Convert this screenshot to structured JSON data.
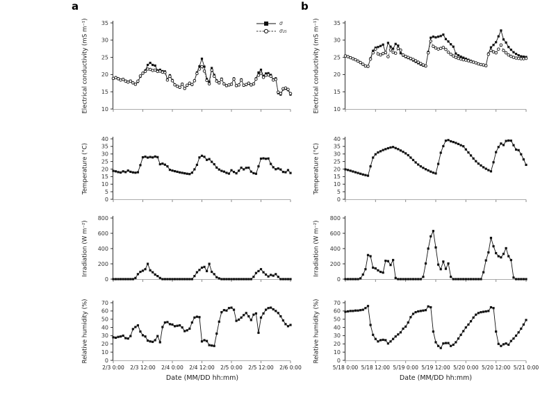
{
  "figure": {
    "background": "#ffffff",
    "panel_a": {
      "label": "a",
      "xlabel": "Date (MM/DD hh:mm)"
    },
    "panel_b": {
      "label": "b",
      "xlabel": "Date (MM/DD hh:mm)"
    }
  },
  "legend": {
    "items": [
      {
        "label": "σ",
        "marker": "filled-square",
        "line": "solid"
      },
      {
        "label": "σ₂₅",
        "marker": "open-circle",
        "line": "dashed"
      }
    ]
  },
  "colors": {
    "series": "#111111",
    "axis": "#2f2f2f",
    "baseline": "#ababab",
    "text": "#1a1a1a"
  },
  "chart_data": [
    {
      "type": "line",
      "panel": "a",
      "measure": "electrical-conductivity",
      "ylabel": "Electrical conductivity (mS m⁻¹)",
      "ylim": [
        10,
        35
      ],
      "yticks": [
        10,
        15,
        20,
        25,
        30,
        35
      ],
      "x_hours_range": [
        0,
        72
      ],
      "x_step_hours": 1,
      "xtick_hours": [
        0,
        12,
        24,
        36,
        48,
        60,
        72
      ],
      "xticklabels": null,
      "legend": true,
      "series": [
        {
          "name": "σ",
          "marker": "filled-square",
          "line": "solid",
          "values": [
            18.8,
            19.2,
            18.9,
            18.5,
            18.7,
            18.2,
            17.9,
            18.2,
            17.5,
            17.1,
            17.9,
            19.4,
            20.3,
            21.2,
            22.8,
            23.4,
            22.8,
            22.6,
            21.2,
            21.4,
            21.0,
            20.9,
            18.6,
            19.8,
            18.4,
            17.1,
            16.7,
            16.2,
            17.3,
            15.9,
            16.8,
            17.4,
            17.0,
            18.3,
            20.6,
            22.4,
            24.6,
            22.3,
            18.7,
            17.9,
            21.9,
            19.9,
            18.3,
            17.5,
            18.8,
            17.2,
            16.7,
            16.9,
            17.1,
            18.9,
            16.7,
            16.9,
            18.6,
            16.8,
            17.0,
            17.4,
            16.9,
            17.2,
            18.9,
            20.6,
            21.4,
            19.6,
            20.3,
            20.4,
            19.9,
            18.6,
            18.9,
            14.6,
            14.2,
            15.7,
            15.9,
            15.5,
            14.2
          ]
        },
        {
          "name": "σ₂₅",
          "marker": "open-circle",
          "line": "dashed",
          "values": [
            18.9,
            19.1,
            18.8,
            18.4,
            18.6,
            18.1,
            17.8,
            18.1,
            17.6,
            17.2,
            18.1,
            19.6,
            20.4,
            20.9,
            21.6,
            21.5,
            21.2,
            21.3,
            20.9,
            21.0,
            20.7,
            20.6,
            18.4,
            19.5,
            18.2,
            17.0,
            16.6,
            16.3,
            17.2,
            16.0,
            16.9,
            17.5,
            17.1,
            18.2,
            20.3,
            21.6,
            22.3,
            21.0,
            18.3,
            17.3,
            21.3,
            19.5,
            18.1,
            17.6,
            18.6,
            17.3,
            16.8,
            17.0,
            17.2,
            18.7,
            16.8,
            17.0,
            18.4,
            16.9,
            17.1,
            17.5,
            17.0,
            17.3,
            18.7,
            19.8,
            20.4,
            19.2,
            19.8,
            19.9,
            19.5,
            18.4,
            18.6,
            14.9,
            14.5,
            15.9,
            16.1,
            15.7,
            14.5
          ]
        }
      ]
    },
    {
      "type": "line",
      "panel": "a",
      "measure": "temperature",
      "ylabel": "Temperature (°C)",
      "ylim": [
        0,
        40
      ],
      "yticks": [
        0,
        5,
        10,
        15,
        20,
        25,
        30,
        35,
        40
      ],
      "x_hours_range": [
        0,
        72
      ],
      "x_step_hours": 1,
      "xtick_hours": [
        0,
        12,
        24,
        36,
        48,
        60,
        72
      ],
      "xticklabels": null,
      "legend": false,
      "series": [
        {
          "name": "temperature",
          "marker": "filled-square",
          "line": "solid",
          "values": [
            18.8,
            18.5,
            18.0,
            17.7,
            18.5,
            18.0,
            19.0,
            18.2,
            17.8,
            17.6,
            17.9,
            22.6,
            27.8,
            28.2,
            27.6,
            28.0,
            27.7,
            28.3,
            27.9,
            23.2,
            23.6,
            22.9,
            21.8,
            19.5,
            19.0,
            18.6,
            18.2,
            17.8,
            17.5,
            17.2,
            16.9,
            16.7,
            17.6,
            19.8,
            22.8,
            27.7,
            28.8,
            28.1,
            26.1,
            26.6,
            24.8,
            23.2,
            21.0,
            19.7,
            18.8,
            18.3,
            17.5,
            17.0,
            19.2,
            18.1,
            17.2,
            18.9,
            20.9,
            19.8,
            20.8,
            20.9,
            18.3,
            17.3,
            16.9,
            21.8,
            26.9,
            27.1,
            26.8,
            27.0,
            23.4,
            21.2,
            19.9,
            20.4,
            19.7,
            18.1,
            17.9,
            19.3,
            17.4
          ]
        }
      ]
    },
    {
      "type": "line",
      "panel": "a",
      "measure": "irradiation",
      "ylabel": "Irradiation (W m⁻²)",
      "ylim": [
        0,
        800
      ],
      "yticks": [
        0,
        200,
        400,
        600,
        800
      ],
      "x_hours_range": [
        0,
        72
      ],
      "x_step_hours": 1,
      "xtick_hours": [
        0,
        12,
        24,
        36,
        48,
        60,
        72
      ],
      "xticklabels": null,
      "legend": false,
      "series": [
        {
          "name": "irradiation",
          "marker": "filled-square",
          "line": "solid",
          "values": [
            0,
            0,
            0,
            0,
            0,
            0,
            0,
            0,
            0,
            15,
            65,
            95,
            110,
            130,
            200,
            115,
            90,
            60,
            40,
            15,
            0,
            0,
            0,
            0,
            0,
            0,
            0,
            0,
            0,
            0,
            0,
            0,
            0,
            40,
            90,
            120,
            150,
            160,
            105,
            200,
            95,
            65,
            25,
            10,
            0,
            0,
            0,
            0,
            0,
            0,
            0,
            0,
            0,
            0,
            0,
            0,
            0,
            30,
            80,
            105,
            130,
            90,
            60,
            35,
            55,
            45,
            65,
            30,
            0,
            0,
            0,
            0,
            0
          ]
        }
      ]
    },
    {
      "type": "line",
      "panel": "a",
      "measure": "relative-humidity",
      "ylabel": "Relative humidity (%)",
      "ylim": [
        0,
        70
      ],
      "yticks": [
        0,
        10,
        20,
        30,
        40,
        50,
        60,
        70
      ],
      "x_hours_range": [
        0,
        72
      ],
      "x_step_hours": 1,
      "xtick_hours": [
        0,
        12,
        24,
        36,
        48,
        60,
        72
      ],
      "xticklabels": [
        "2/3 0:00",
        "2/3 12:00",
        "2/4 0:00",
        "2/4 12:00",
        "2/5 0:00",
        "2/5 12:00",
        "2/6 0:00"
      ],
      "legend": false,
      "series": [
        {
          "name": "relative-humidity",
          "marker": "filled-square",
          "line": "solid",
          "values": [
            28,
            27.5,
            28.5,
            29,
            30,
            27,
            26.5,
            29.5,
            38,
            40.5,
            42.5,
            35,
            30.5,
            29,
            24,
            23,
            22.5,
            24.5,
            29.5,
            22,
            40.5,
            46,
            46.5,
            44,
            43.5,
            41.5,
            42,
            42.5,
            40,
            35.5,
            36.5,
            38.5,
            46,
            52,
            53,
            52.5,
            23,
            24.5,
            23.5,
            18.5,
            18,
            17.5,
            32.5,
            47,
            58.5,
            61,
            60.5,
            63.5,
            64,
            61.5,
            48,
            49.5,
            52,
            55,
            57.5,
            53.5,
            49,
            55.5,
            57,
            33.5,
            52,
            57,
            61.5,
            63.5,
            64,
            62,
            60,
            57.5,
            53.5,
            48.5,
            44,
            41.5,
            43
          ]
        }
      ]
    },
    {
      "type": "line",
      "panel": "b",
      "measure": "electrical-conductivity",
      "ylabel": "Electrical conductivity (mS m⁻¹)",
      "ylim": [
        10,
        35
      ],
      "yticks": [
        10,
        15,
        20,
        25,
        30,
        35
      ],
      "x_hours_range": [
        0,
        72
      ],
      "x_step_hours": 1,
      "xtick_hours": [
        0,
        12,
        24,
        36,
        48,
        60,
        72
      ],
      "xticklabels": null,
      "legend": false,
      "series": [
        {
          "name": "σ",
          "marker": "filled-square",
          "line": "solid",
          "values": [
            25.5,
            25.3,
            25.0,
            24.7,
            24.3,
            23.9,
            23.4,
            22.9,
            22.4,
            22.3,
            24.7,
            26.9,
            27.8,
            28.0,
            28.3,
            28.7,
            26.3,
            29.2,
            28.1,
            27.5,
            28.9,
            28.4,
            26.2,
            25.5,
            25.1,
            24.8,
            24.5,
            24.1,
            23.7,
            23.3,
            22.9,
            22.6,
            22.4,
            26.6,
            30.7,
            31.0,
            30.8,
            31.0,
            31.2,
            31.6,
            30.3,
            29.6,
            28.8,
            28.1,
            26.1,
            25.6,
            25.2,
            24.9,
            24.6,
            24.3,
            24.0,
            23.7,
            23.4,
            23.1,
            22.9,
            22.7,
            22.5,
            26.1,
            27.9,
            28.6,
            29.4,
            31.1,
            32.8,
            30.2,
            29.3,
            28.0,
            27.2,
            26.5,
            26.0,
            25.6,
            25.3,
            25.2,
            25.1
          ]
        },
        {
          "name": "σ₂₅",
          "marker": "open-circle",
          "line": "dashed",
          "values": [
            25.4,
            25.2,
            24.9,
            24.6,
            24.3,
            23.9,
            23.5,
            23.0,
            22.5,
            22.4,
            24.5,
            26.3,
            27.4,
            26.0,
            25.7,
            26.1,
            26.4,
            25.2,
            27.2,
            26.5,
            26.2,
            27.6,
            27.1,
            25.7,
            25.3,
            25.0,
            24.7,
            24.4,
            24.0,
            23.6,
            23.2,
            22.8,
            22.5,
            26.3,
            29.7,
            28.2,
            27.7,
            27.4,
            27.6,
            27.9,
            27.3,
            26.5,
            25.9,
            25.4,
            25.0,
            24.7,
            24.5,
            24.3,
            24.2,
            24.0,
            23.8,
            23.6,
            23.4,
            23.1,
            22.9,
            22.8,
            22.6,
            25.9,
            27.0,
            26.6,
            26.3,
            27.4,
            28.6,
            27.0,
            26.3,
            25.7,
            25.3,
            25.0,
            24.8,
            24.7,
            24.6,
            24.6,
            24.7
          ]
        }
      ]
    },
    {
      "type": "line",
      "panel": "b",
      "measure": "temperature",
      "ylabel": "Temperature (°C)",
      "ylim": [
        0,
        40
      ],
      "yticks": [
        0,
        5,
        10,
        15,
        20,
        25,
        30,
        35,
        40
      ],
      "x_hours_range": [
        0,
        72
      ],
      "x_step_hours": 1,
      "xtick_hours": [
        0,
        12,
        24,
        36,
        48,
        60,
        72
      ],
      "xticklabels": null,
      "legend": false,
      "series": [
        {
          "name": "temperature",
          "marker": "filled-square",
          "line": "solid",
          "values": [
            19.8,
            19.4,
            18.9,
            18.4,
            17.9,
            17.4,
            16.9,
            16.4,
            16.0,
            15.6,
            21.8,
            27.6,
            29.8,
            31.0,
            31.8,
            32.6,
            33.2,
            33.8,
            34.3,
            34.6,
            33.9,
            33.2,
            32.3,
            31.4,
            30.4,
            29.2,
            27.6,
            26.0,
            24.4,
            23.0,
            21.8,
            20.8,
            19.9,
            19.1,
            18.3,
            17.6,
            17.1,
            23.4,
            30.8,
            35.2,
            38.8,
            39.2,
            38.4,
            37.9,
            37.3,
            36.6,
            35.8,
            35.1,
            33.0,
            31.0,
            29.0,
            27.0,
            25.2,
            23.6,
            22.4,
            21.2,
            20.2,
            19.3,
            18.5,
            24.5,
            31.2,
            34.6,
            36.9,
            35.9,
            38.6,
            38.9,
            38.8,
            35.8,
            32.9,
            32.5,
            29.8,
            26.4,
            22.8
          ]
        }
      ]
    },
    {
      "type": "line",
      "panel": "b",
      "measure": "irradiation",
      "ylabel": "Irradiation (W m⁻²)",
      "ylim": [
        0,
        800
      ],
      "yticks": [
        0,
        200,
        400,
        600,
        800
      ],
      "x_hours_range": [
        0,
        72
      ],
      "x_step_hours": 1,
      "xtick_hours": [
        0,
        12,
        24,
        36,
        48,
        60,
        72
      ],
      "xticklabels": null,
      "legend": false,
      "series": [
        {
          "name": "irradiation",
          "marker": "filled-square",
          "line": "solid",
          "values": [
            0,
            0,
            0,
            0,
            0,
            0,
            10,
            60,
            130,
            315,
            300,
            150,
            140,
            115,
            95,
            85,
            240,
            235,
            185,
            250,
            15,
            0,
            0,
            0,
            0,
            0,
            0,
            0,
            0,
            0,
            0,
            30,
            205,
            400,
            560,
            630,
            415,
            190,
            130,
            230,
            135,
            205,
            30,
            0,
            0,
            0,
            0,
            0,
            0,
            0,
            0,
            0,
            0,
            0,
            0,
            90,
            245,
            350,
            540,
            430,
            340,
            300,
            285,
            330,
            405,
            300,
            250,
            20,
            0,
            0,
            0,
            0,
            0
          ]
        }
      ]
    },
    {
      "type": "line",
      "panel": "b",
      "measure": "relative-humidity",
      "ylabel": "Relative humidity (%)",
      "ylim": [
        0,
        70
      ],
      "yticks": [
        0,
        10,
        20,
        30,
        40,
        50,
        60,
        70
      ],
      "x_hours_range": [
        0,
        72
      ],
      "x_step_hours": 1,
      "xtick_hours": [
        0,
        12,
        24,
        36,
        48,
        60,
        72
      ],
      "xticklabels": [
        "5/18 0:00",
        "5/18 12:00",
        "5/19 0:00",
        "5/19 12:00",
        "5/20 0:00",
        "5/20 12:00",
        "5/21 0:00"
      ],
      "legend": false,
      "series": [
        {
          "name": "relative-humidity",
          "marker": "filled-square",
          "line": "solid",
          "values": [
            59,
            59.5,
            60,
            60,
            60.5,
            60.5,
            61,
            61.5,
            63.5,
            66,
            43,
            31,
            26,
            23,
            24.5,
            25,
            24.5,
            20.5,
            23,
            26,
            29,
            31.5,
            34,
            38.5,
            41,
            46,
            52.5,
            56.5,
            58.5,
            59.5,
            60,
            60.5,
            61,
            65.5,
            64.5,
            35,
            22,
            17.5,
            15,
            20.5,
            21,
            21,
            17.5,
            19,
            22,
            26.5,
            31,
            35.5,
            40,
            43.5,
            47.5,
            52,
            55.5,
            57.5,
            58.5,
            59,
            59.5,
            60,
            64.5,
            63.5,
            35,
            20,
            17.5,
            19.5,
            20.5,
            19,
            23.5,
            26.5,
            30,
            34,
            38.5,
            43.5,
            49
          ]
        }
      ]
    }
  ]
}
